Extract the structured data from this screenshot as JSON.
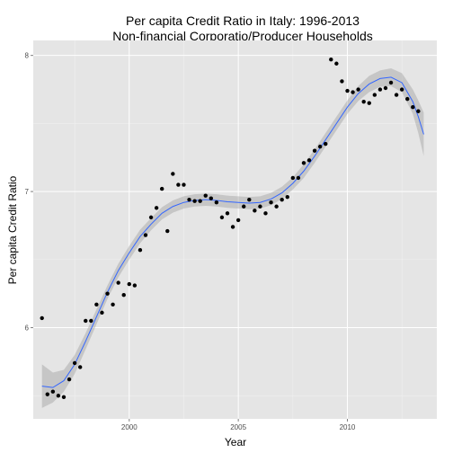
{
  "chart_data": {
    "type": "scatter",
    "title_line1": "Per capita Credit Ratio in Italy: 1996-2013",
    "title_line2": "Non-financial Corporatio/Producer Households",
    "xlabel": "Year",
    "ylabel": "Per capita Credit Ratio",
    "xlim": [
      1995.6,
      2014.1
    ],
    "ylim": [
      5.33,
      8.11
    ],
    "x_ticks": [
      2000,
      2005,
      2010
    ],
    "x_tick_labels": [
      "2000",
      "2005",
      "2010"
    ],
    "y_ticks": [
      6,
      7,
      8
    ],
    "y_tick_labels": [
      "6",
      "7",
      "8"
    ],
    "grid": true,
    "colors": {
      "panel": "#e5e5e5",
      "grid_major": "#ffffff",
      "grid_minor": "#f2f2f2",
      "points": "#000000",
      "smooth_line": "#3366ff",
      "ribbon": "#999999"
    },
    "points": [
      [
        1996.0,
        6.07
      ],
      [
        1996.25,
        5.51
      ],
      [
        1996.5,
        5.53
      ],
      [
        1996.75,
        5.5
      ],
      [
        1997.0,
        5.49
      ],
      [
        1997.25,
        5.62
      ],
      [
        1997.5,
        5.74
      ],
      [
        1997.75,
        5.71
      ],
      [
        1998.0,
        6.05
      ],
      [
        1998.25,
        6.05
      ],
      [
        1998.5,
        6.17
      ],
      [
        1998.75,
        6.11
      ],
      [
        1999.0,
        6.25
      ],
      [
        1999.25,
        6.17
      ],
      [
        1999.5,
        6.33
      ],
      [
        1999.75,
        6.24
      ],
      [
        2000.0,
        6.32
      ],
      [
        2000.25,
        6.31
      ],
      [
        2000.5,
        6.57
      ],
      [
        2000.75,
        6.68
      ],
      [
        2001.0,
        6.81
      ],
      [
        2001.25,
        6.88
      ],
      [
        2001.5,
        7.02
      ],
      [
        2001.75,
        6.71
      ],
      [
        2002.0,
        7.13
      ],
      [
        2002.25,
        7.05
      ],
      [
        2002.5,
        7.05
      ],
      [
        2002.75,
        6.94
      ],
      [
        2003.0,
        6.93
      ],
      [
        2003.25,
        6.93
      ],
      [
        2003.5,
        6.97
      ],
      [
        2003.75,
        6.95
      ],
      [
        2004.0,
        6.92
      ],
      [
        2004.25,
        6.81
      ],
      [
        2004.5,
        6.84
      ],
      [
        2004.75,
        6.74
      ],
      [
        2005.0,
        6.79
      ],
      [
        2005.25,
        6.89
      ],
      [
        2005.5,
        6.94
      ],
      [
        2005.75,
        6.86
      ],
      [
        2006.0,
        6.89
      ],
      [
        2006.25,
        6.84
      ],
      [
        2006.5,
        6.92
      ],
      [
        2006.75,
        6.89
      ],
      [
        2007.0,
        6.94
      ],
      [
        2007.25,
        6.96
      ],
      [
        2007.5,
        7.1
      ],
      [
        2007.75,
        7.1
      ],
      [
        2008.0,
        7.21
      ],
      [
        2008.25,
        7.23
      ],
      [
        2008.5,
        7.3
      ],
      [
        2008.75,
        7.33
      ],
      [
        2009.0,
        7.35
      ],
      [
        2009.25,
        7.97
      ],
      [
        2009.5,
        7.94
      ],
      [
        2009.75,
        7.81
      ],
      [
        2010.0,
        7.74
      ],
      [
        2010.25,
        7.73
      ],
      [
        2010.5,
        7.75
      ],
      [
        2010.75,
        7.66
      ],
      [
        2011.0,
        7.65
      ],
      [
        2011.25,
        7.71
      ],
      [
        2011.5,
        7.75
      ],
      [
        2011.75,
        7.76
      ],
      [
        2012.0,
        7.8
      ],
      [
        2012.25,
        7.71
      ],
      [
        2012.5,
        7.75
      ],
      [
        2012.75,
        7.68
      ],
      [
        2013.0,
        7.62
      ],
      [
        2013.25,
        7.59
      ]
    ],
    "smooth_fit": [
      [
        1996.0,
        5.57
      ],
      [
        1996.5,
        5.56
      ],
      [
        1997.0,
        5.61
      ],
      [
        1997.5,
        5.73
      ],
      [
        1998.0,
        5.9
      ],
      [
        1998.5,
        6.08
      ],
      [
        1999.0,
        6.26
      ],
      [
        1999.5,
        6.42
      ],
      [
        2000.0,
        6.55
      ],
      [
        2000.5,
        6.67
      ],
      [
        2001.0,
        6.76
      ],
      [
        2001.5,
        6.84
      ],
      [
        2002.0,
        6.89
      ],
      [
        2002.5,
        6.92
      ],
      [
        2003.0,
        6.935
      ],
      [
        2003.5,
        6.94
      ],
      [
        2004.0,
        6.935
      ],
      [
        2004.5,
        6.925
      ],
      [
        2005.0,
        6.92
      ],
      [
        2005.5,
        6.915
      ],
      [
        2006.0,
        6.92
      ],
      [
        2006.5,
        6.945
      ],
      [
        2007.0,
        6.99
      ],
      [
        2007.5,
        7.06
      ],
      [
        2008.0,
        7.15
      ],
      [
        2008.5,
        7.26
      ],
      [
        2009.0,
        7.38
      ],
      [
        2009.5,
        7.5
      ],
      [
        2010.0,
        7.62
      ],
      [
        2010.5,
        7.72
      ],
      [
        2011.0,
        7.79
      ],
      [
        2011.5,
        7.83
      ],
      [
        2012.0,
        7.84
      ],
      [
        2012.5,
        7.8
      ],
      [
        2013.0,
        7.66
      ],
      [
        2013.25,
        7.55
      ],
      [
        2013.5,
        7.42
      ]
    ],
    "ribbon_halfwidth": [
      0.16,
      0.11,
      0.08,
      0.07,
      0.06,
      0.055,
      0.05,
      0.05,
      0.05,
      0.05,
      0.045,
      0.045,
      0.045,
      0.045,
      0.045,
      0.045,
      0.045,
      0.045,
      0.045,
      0.045,
      0.045,
      0.045,
      0.045,
      0.045,
      0.05,
      0.05,
      0.05,
      0.05,
      0.05,
      0.055,
      0.06,
      0.06,
      0.065,
      0.07,
      0.09,
      0.12,
      0.16
    ]
  }
}
